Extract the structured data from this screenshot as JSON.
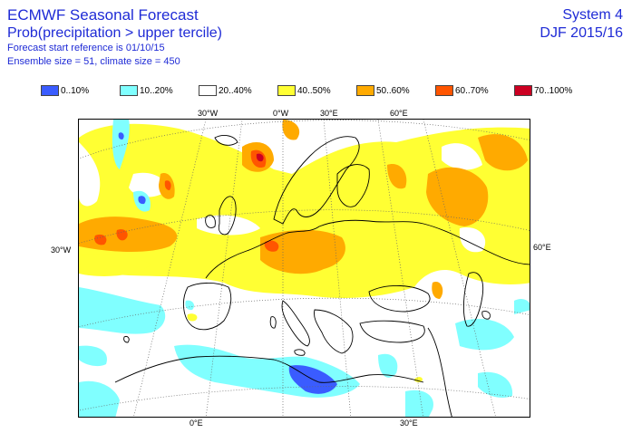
{
  "header": {
    "title": "ECMWF Seasonal Forecast",
    "subtitle": "Prob(precipitation > upper tercile)",
    "start_reference": "Forecast start reference is 01/10/15",
    "ensemble": "Ensemble size = 51, climate size = 450",
    "system": "System 4",
    "period": "DJF 2015/16"
  },
  "legend": [
    {
      "label": "0..10%",
      "color": "#3a5cff"
    },
    {
      "label": "10..20%",
      "color": "#80ffff"
    },
    {
      "label": "20..40%",
      "color": "#ffffff"
    },
    {
      "label": "40..50%",
      "color": "#ffff33"
    },
    {
      "label": "50..60%",
      "color": "#ffaa00"
    },
    {
      "label": "60..70%",
      "color": "#ff5500"
    },
    {
      "label": "70..100%",
      "color": "#cc0022"
    }
  ],
  "map": {
    "top_labels": [
      "30°W",
      "0°W",
      "30°E",
      "60°E"
    ],
    "left_label": "30°W",
    "right_label": "60°E",
    "bottom_labels": [
      "0°E",
      "30°E"
    ]
  }
}
